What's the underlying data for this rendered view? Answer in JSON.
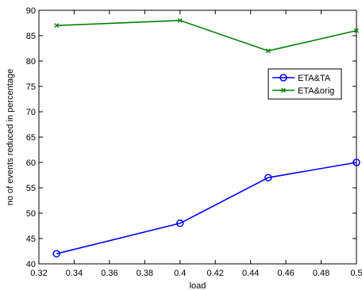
{
  "chart_data": {
    "type": "line",
    "title": "",
    "xlabel": "load",
    "ylabel": "no of events reduced in percentage",
    "xlim": [
      0.32,
      0.5
    ],
    "ylim": [
      40,
      90
    ],
    "xticks": [
      0.32,
      0.34,
      0.36,
      0.38,
      0.4,
      0.42,
      0.44,
      0.46,
      0.48,
      0.5
    ],
    "xtick_labels": [
      "0.32",
      "0.34",
      "0.36",
      "0.38",
      "0.4",
      "0.42",
      "0.44",
      "0.46",
      "0.48",
      "0.5"
    ],
    "yticks": [
      40,
      45,
      50,
      55,
      60,
      65,
      70,
      75,
      80,
      85,
      90
    ],
    "ytick_labels": [
      "40",
      "45",
      "50",
      "55",
      "60",
      "65",
      "70",
      "75",
      "80",
      "85",
      "90"
    ],
    "grid": false,
    "legend_position": "upper-right",
    "x": [
      0.33,
      0.4,
      0.45,
      0.5
    ],
    "series": [
      {
        "name": "ETA&TA",
        "values": [
          42,
          48,
          57,
          60
        ],
        "color": "#0000ff",
        "marker": "circle"
      },
      {
        "name": "ETA&orig",
        "values": [
          87,
          88,
          82,
          86
        ],
        "color": "#008000",
        "marker": "x"
      }
    ]
  }
}
